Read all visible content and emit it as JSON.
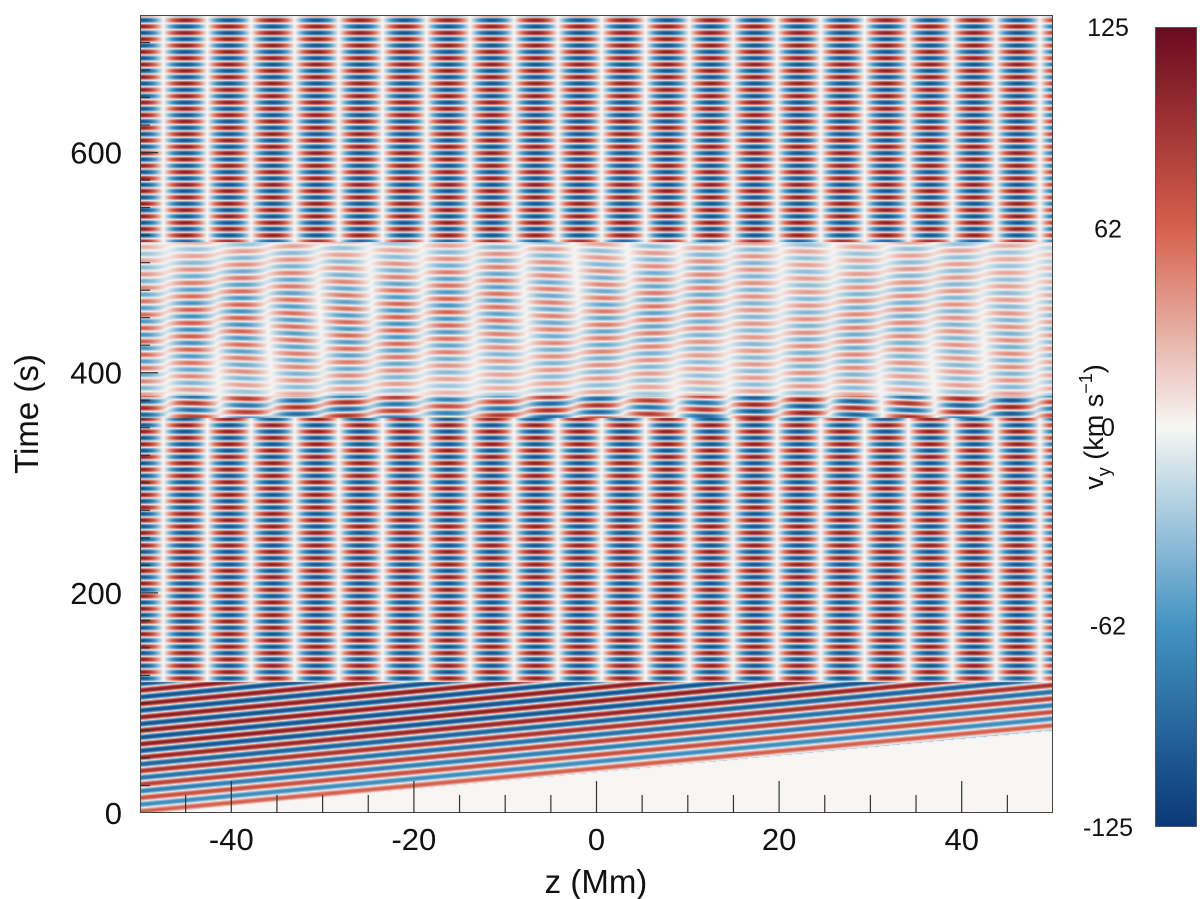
{
  "chart_data": {
    "type": "heatmap",
    "title": "",
    "xlabel": "z (Mm)",
    "ylabel": "Time (s)",
    "xlim": [
      -50,
      50
    ],
    "ylim": [
      0,
      725
    ],
    "xticks": [
      -40,
      -20,
      0,
      20,
      40
    ],
    "xtick_labels": [
      "-40",
      "-20",
      "0",
      "20",
      "40"
    ],
    "yticks": [
      0,
      200,
      400,
      600
    ],
    "ytick_labels": [
      "0",
      "200",
      "400",
      "600"
    ],
    "colorbar": {
      "label_main": "v",
      "label_sub": "y",
      "label_rest": " (km s",
      "label_sup": "−1",
      "label_end": ")",
      "range": [
        -125,
        125
      ],
      "ticks": [
        125,
        62,
        0,
        -62,
        -125
      ],
      "tick_labels": [
        "125",
        "62",
        "0",
        "-62",
        "-125"
      ],
      "colormap": "RdBu_r",
      "color_max": "#6b0a1f",
      "color_pos": "#d6604d",
      "color_mid": "#f7f6f4",
      "color_neg": "#4393c3",
      "color_min": "#0b3a78"
    },
    "description_values": {
      "wave_front_start": {
        "z": -50,
        "t": 0
      },
      "wave_front_end": {
        "z": 48,
        "t": 75
      },
      "amplitude_max": 125
    }
  }
}
